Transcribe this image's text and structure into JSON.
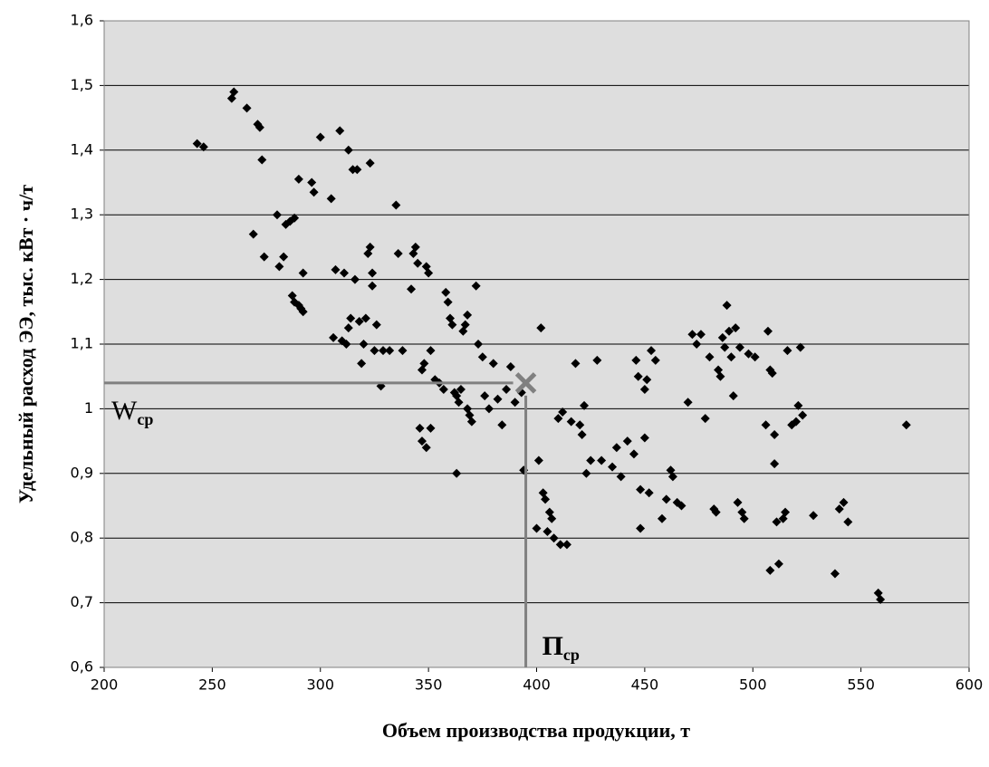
{
  "chart_data": {
    "type": "scatter",
    "xlabel": "Объем производства продукции, т",
    "ylabel": "Удельный расход ЭЭ, тыс. кВт · ч/т",
    "xlim": [
      200,
      600
    ],
    "xticks": [
      200,
      250,
      300,
      350,
      400,
      450,
      500,
      550,
      600
    ],
    "ylim": [
      0.6,
      1.6
    ],
    "yticks": [
      {
        "value": 0.6,
        "label": "0,6"
      },
      {
        "value": 0.7,
        "label": "0,7"
      },
      {
        "value": 0.8,
        "label": "0,8"
      },
      {
        "value": 0.9,
        "label": "0,9"
      },
      1,
      {
        "value": 1.1,
        "label": "1,1"
      },
      {
        "value": 1.2,
        "label": "1,2"
      },
      {
        "value": 1.3,
        "label": "1,3"
      },
      {
        "value": 1.4,
        "label": "1,4"
      },
      {
        "value": 1.5,
        "label": "1,5"
      },
      {
        "value": 1.6,
        "label": "1,6"
      }
    ],
    "grid": true,
    "color": "#000000",
    "x": [
      243,
      246,
      259,
      260,
      266,
      271,
      272,
      273,
      269,
      274,
      280,
      281,
      283,
      284,
      286,
      288,
      287,
      288,
      290,
      291,
      292,
      290,
      292,
      296,
      297,
      300,
      305,
      307,
      306,
      309,
      310,
      311,
      312,
      313,
      313,
      314,
      315,
      316,
      317,
      318,
      319,
      320,
      321,
      322,
      323,
      323,
      324,
      324,
      326,
      325,
      328,
      329,
      332,
      335,
      336,
      338,
      342,
      343,
      344,
      345,
      347,
      348,
      349,
      350,
      351,
      346,
      347,
      349,
      351,
      353,
      355,
      357,
      358,
      359,
      360,
      361,
      362,
      363,
      363,
      364,
      365,
      366,
      367,
      368,
      368,
      369,
      370,
      372,
      373,
      375,
      376,
      378,
      380,
      382,
      384,
      386,
      388,
      390,
      393,
      394,
      400,
      401,
      402,
      403,
      404,
      405,
      406,
      407,
      408,
      410,
      411,
      412,
      414,
      416,
      418,
      420,
      421,
      422,
      423,
      425,
      428,
      430,
      435,
      437,
      439,
      442,
      445,
      446,
      447,
      448,
      448,
      450,
      450,
      451,
      452,
      453,
      455,
      458,
      460,
      462,
      463,
      465,
      467,
      470,
      472,
      474,
      476,
      478,
      480,
      482,
      483,
      484,
      485,
      486,
      487,
      488,
      489,
      490,
      491,
      492,
      493,
      494,
      495,
      496,
      498,
      501,
      506,
      507,
      508,
      508,
      509,
      510,
      510,
      511,
      512,
      514,
      515,
      516,
      518,
      520,
      521,
      522,
      523,
      528,
      538,
      540,
      542,
      544,
      558,
      559,
      571
    ],
    "values": [
      1.41,
      1.405,
      1.48,
      1.49,
      1.465,
      1.44,
      1.435,
      1.385,
      1.27,
      1.235,
      1.3,
      1.22,
      1.235,
      1.285,
      1.29,
      1.295,
      1.175,
      1.165,
      1.16,
      1.155,
      1.15,
      1.355,
      1.21,
      1.35,
      1.335,
      1.42,
      1.325,
      1.215,
      1.11,
      1.43,
      1.105,
      1.21,
      1.1,
      1.125,
      1.4,
      1.14,
      1.37,
      1.2,
      1.37,
      1.135,
      1.07,
      1.1,
      1.14,
      1.24,
      1.25,
      1.38,
      1.21,
      1.19,
      1.13,
      1.09,
      1.035,
      1.09,
      1.09,
      1.315,
      1.24,
      1.09,
      1.185,
      1.24,
      1.25,
      1.225,
      1.06,
      1.07,
      1.22,
      1.21,
      1.09,
      0.97,
      0.95,
      0.94,
      0.97,
      1.045,
      1.04,
      1.03,
      1.18,
      1.165,
      1.14,
      1.13,
      1.025,
      1.02,
      0.9,
      1.01,
      1.03,
      1.12,
      1.13,
      1.145,
      1.0,
      0.99,
      0.98,
      1.19,
      1.1,
      1.08,
      1.02,
      1.0,
      1.07,
      1.015,
      0.975,
      1.03,
      1.065,
      1.01,
      1.025,
      0.905,
      0.815,
      0.92,
      1.125,
      0.87,
      0.86,
      0.81,
      0.84,
      0.83,
      0.8,
      0.985,
      0.79,
      0.995,
      0.79,
      0.98,
      1.07,
      0.975,
      0.96,
      1.005,
      0.9,
      0.92,
      1.075,
      0.92,
      0.91,
      0.94,
      0.895,
      0.95,
      0.93,
      1.075,
      1.05,
      0.875,
      0.815,
      0.955,
      1.03,
      1.045,
      0.87,
      1.09,
      1.075,
      0.83,
      0.86,
      0.905,
      0.895,
      0.855,
      0.85,
      1.01,
      1.115,
      1.1,
      1.115,
      0.985,
      1.08,
      0.845,
      0.84,
      1.06,
      1.05,
      1.11,
      1.095,
      1.16,
      1.12,
      1.08,
      1.02,
      1.125,
      0.855,
      1.095,
      0.84,
      0.83,
      1.085,
      1.08,
      0.975,
      1.12,
      1.06,
      0.75,
      1.055,
      0.915,
      0.96,
      0.825,
      0.76,
      0.83,
      0.84,
      1.09,
      0.975,
      0.98,
      1.005,
      1.095,
      0.99,
      0.835,
      0.745,
      0.845,
      0.855,
      0.825,
      0.715,
      0.705,
      0.975
    ],
    "mean_point": {
      "x": 395,
      "y": 1.04,
      "color": "#808080"
    },
    "annotations": [
      {
        "text": "W",
        "sub": "ср"
      },
      {
        "text": "П",
        "sub": "ср"
      }
    ]
  }
}
